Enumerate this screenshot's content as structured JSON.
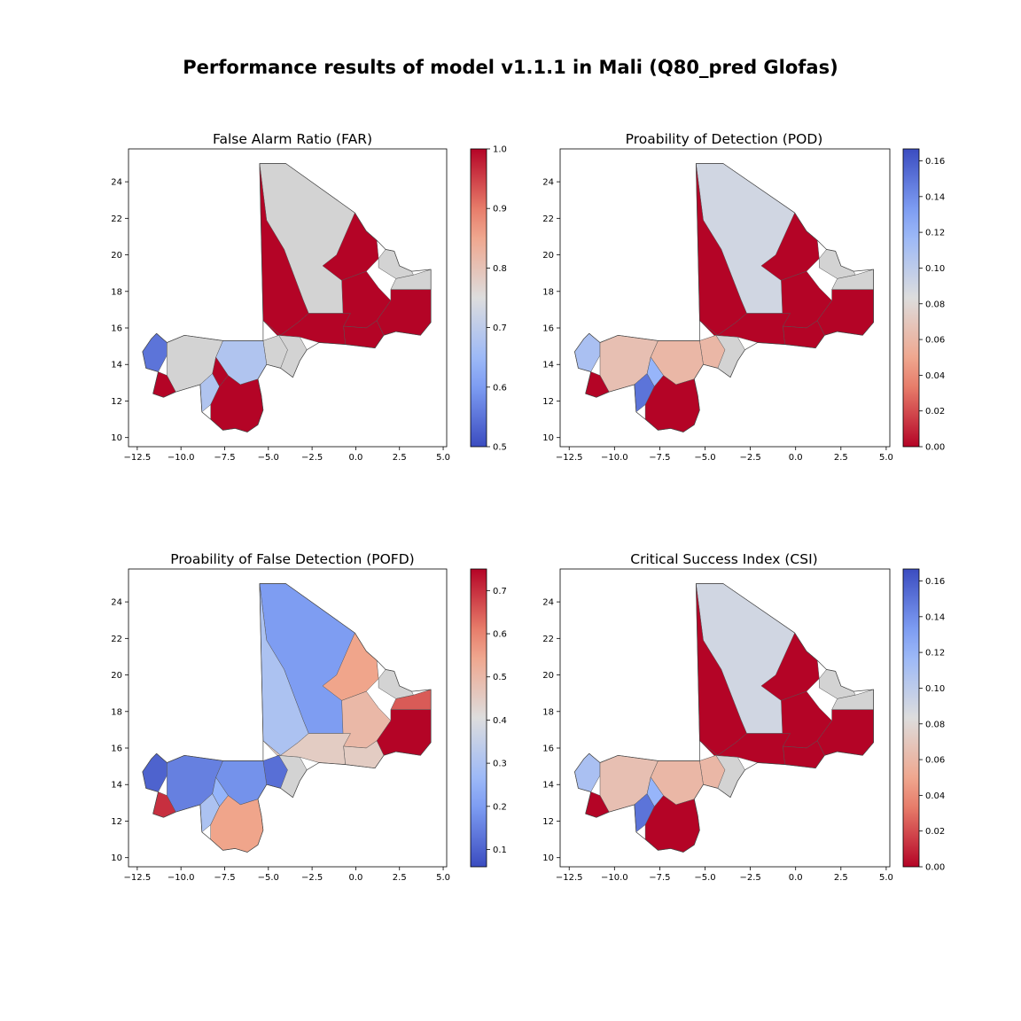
{
  "figure": {
    "suptitle": "Performance results of model v1.1.1 in Mali (Q80_pred Glofas)"
  },
  "chart_data": [
    {
      "type": "choropleth map",
      "title": "False Alarm Ratio (FAR)",
      "x_ticks": [
        "−12.5",
        "−10.0",
        "−7.5",
        "−5.0",
        "−2.5",
        "0.0",
        "2.5",
        "5.0"
      ],
      "y_ticks": [
        "10",
        "12",
        "14",
        "16",
        "18",
        "20",
        "22",
        "24"
      ],
      "xlim": [
        -13.0,
        5.2
      ],
      "ylim": [
        9.5,
        25.8
      ],
      "colorbar": {
        "cmap": "coolwarm",
        "vmin": 0.5,
        "vmax": 1.0,
        "ticks": [
          "0.5",
          "0.6",
          "0.7",
          "0.8",
          "0.9",
          "1.0"
        ]
      },
      "region_values": {
        "north": null,
        "northwest": 1.0,
        "east_upper": 1.0,
        "east_mid": 1.0,
        "kidal_east": null,
        "kidal_north": null,
        "menaka": 1.0,
        "ansongo": 1.0,
        "central_band": 1.0,
        "mopti_west": null,
        "mopti_east": null,
        "segou_center": 0.68,
        "kayes_west": 0.55,
        "kayes_east": null,
        "kayes_south": 1.0,
        "sikasso_west": 0.68,
        "sikasso_center": 1.0,
        "bamako": 1.0
      },
      "missing_color": "#d3d3d3"
    },
    {
      "type": "choropleth map",
      "title": "Proability of Detection (POD)",
      "x_ticks": [
        "−12.5",
        "−10.0",
        "−7.5",
        "−5.0",
        "−2.5",
        "0.0",
        "2.5",
        "5.0"
      ],
      "y_ticks": [
        "10",
        "12",
        "14",
        "16",
        "18",
        "20",
        "22",
        "24"
      ],
      "xlim": [
        -13.0,
        5.2
      ],
      "ylim": [
        9.5,
        25.8
      ],
      "colorbar": {
        "cmap": "coolwarm_r",
        "vmin": 0.0,
        "vmax": 0.1667,
        "ticks": [
          "0.00",
          "0.02",
          "0.04",
          "0.06",
          "0.08",
          "0.10",
          "0.12",
          "0.14",
          "0.16"
        ]
      },
      "region_values": {
        "north": 0.09,
        "northwest": 0.0,
        "east_upper": 0.0,
        "east_mid": 0.0,
        "kidal_east": null,
        "kidal_north": null,
        "menaka": 0.0,
        "ansongo": 0.0,
        "central_band": 0.0,
        "mopti_west": null,
        "mopti_east": 0.06,
        "segou_center": 0.06,
        "kayes_west": 0.11,
        "kayes_east": 0.065,
        "kayes_south": 0.0,
        "sikasso_west": 0.15,
        "sikasso_center": 0.0,
        "bamako": 0.12
      },
      "missing_color": "#d3d3d3"
    },
    {
      "type": "choropleth map",
      "title": "Proability of False Detection (POFD)",
      "x_ticks": [
        "−12.5",
        "−10.0",
        "−7.5",
        "−5.0",
        "−2.5",
        "0.0",
        "2.5",
        "5.0"
      ],
      "y_ticks": [
        "10",
        "12",
        "14",
        "16",
        "18",
        "20",
        "22",
        "24"
      ],
      "xlim": [
        -13.0,
        5.2
      ],
      "ylim": [
        9.5,
        25.8
      ],
      "colorbar": {
        "cmap": "coolwarm",
        "vmin": 0.06,
        "vmax": 0.75,
        "ticks": [
          "0.1",
          "0.2",
          "0.3",
          "0.4",
          "0.5",
          "0.6",
          "0.7"
        ]
      },
      "region_values": {
        "north": 0.2,
        "northwest": 0.3,
        "east_upper": 0.55,
        "east_mid": 0.5,
        "kidal_east": null,
        "kidal_north": 0.65,
        "menaka": 0.75,
        "ansongo": 0.45,
        "central_band": 0.45,
        "mopti_west": null,
        "mopti_east": 0.12,
        "segou_center": 0.18,
        "kayes_west": 0.1,
        "kayes_east": 0.15,
        "kayes_south": 0.7,
        "sikasso_west": 0.3,
        "sikasso_center": 0.55,
        "bamako": 0.25
      },
      "missing_color": "#d3d3d3"
    },
    {
      "type": "choropleth map",
      "title": "Critical Success Index (CSI)",
      "x_ticks": [
        "−12.5",
        "−10.0",
        "−7.5",
        "−5.0",
        "−2.5",
        "0.0",
        "2.5",
        "5.0"
      ],
      "y_ticks": [
        "10",
        "12",
        "14",
        "16",
        "18",
        "20",
        "22",
        "24"
      ],
      "xlim": [
        -13.0,
        5.2
      ],
      "ylim": [
        9.5,
        25.8
      ],
      "colorbar": {
        "cmap": "coolwarm_r",
        "vmin": 0.0,
        "vmax": 0.1667,
        "ticks": [
          "0.00",
          "0.02",
          "0.04",
          "0.06",
          "0.08",
          "0.10",
          "0.12",
          "0.14",
          "0.16"
        ]
      },
      "region_values": {
        "north": 0.09,
        "northwest": 0.0,
        "east_upper": 0.0,
        "east_mid": 0.0,
        "kidal_east": null,
        "kidal_north": null,
        "menaka": 0.0,
        "ansongo": 0.0,
        "central_band": 0.0,
        "mopti_west": null,
        "mopti_east": 0.06,
        "segou_center": 0.06,
        "kayes_west": 0.11,
        "kayes_east": 0.065,
        "kayes_south": 0.0,
        "sikasso_west": 0.15,
        "sikasso_center": 0.0,
        "bamako": 0.12
      },
      "missing_color": "#d3d3d3"
    }
  ]
}
